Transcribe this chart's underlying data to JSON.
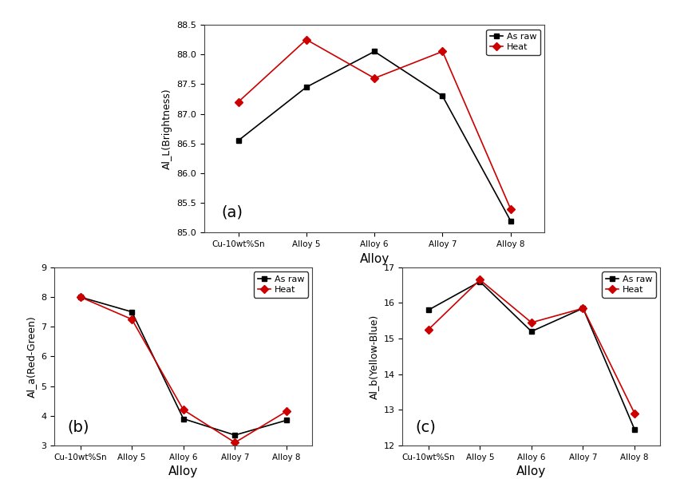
{
  "x_labels": [
    "Cu-10wt%Sn",
    "Alloy 5",
    "Alloy 6",
    "Alloy 7",
    "Alloy 8"
  ],
  "chart_a": {
    "title": "(a)",
    "ylabel": "Al_L(Brightness)",
    "xlabel": "Alloy",
    "as_raw": [
      86.55,
      87.45,
      88.05,
      87.3,
      85.2
    ],
    "heat": [
      87.2,
      88.25,
      87.6,
      88.05,
      85.4
    ],
    "ylim": [
      85.0,
      88.5
    ],
    "yticks": [
      85.0,
      85.5,
      86.0,
      86.5,
      87.0,
      87.5,
      88.0,
      88.5
    ]
  },
  "chart_b": {
    "title": "(b)",
    "ylabel": "Al_a(Red-Green)",
    "xlabel": "Alloy",
    "as_raw": [
      8.0,
      7.5,
      3.9,
      3.35,
      3.85
    ],
    "heat": [
      8.0,
      7.25,
      4.2,
      3.1,
      4.15
    ],
    "ylim": [
      3.0,
      9.0
    ],
    "yticks": [
      3,
      4,
      5,
      6,
      7,
      8,
      9
    ]
  },
  "chart_c": {
    "title": "(c)",
    "ylabel": "Al_b(Yellow-Blue)",
    "xlabel": "Alloy",
    "as_raw": [
      15.8,
      16.6,
      15.2,
      15.85,
      12.45
    ],
    "heat": [
      15.25,
      16.65,
      15.45,
      15.85,
      12.9
    ],
    "ylim": [
      12.0,
      17.0
    ],
    "yticks": [
      12,
      13,
      14,
      15,
      16,
      17
    ]
  },
  "as_raw_color": "#000000",
  "heat_color": "#cc0000",
  "as_raw_marker": "s",
  "heat_marker": "D",
  "linewidth": 1.2,
  "markersize": 5,
  "legend_labels": [
    "As raw",
    "Heat"
  ],
  "bg_color": "#ffffff"
}
